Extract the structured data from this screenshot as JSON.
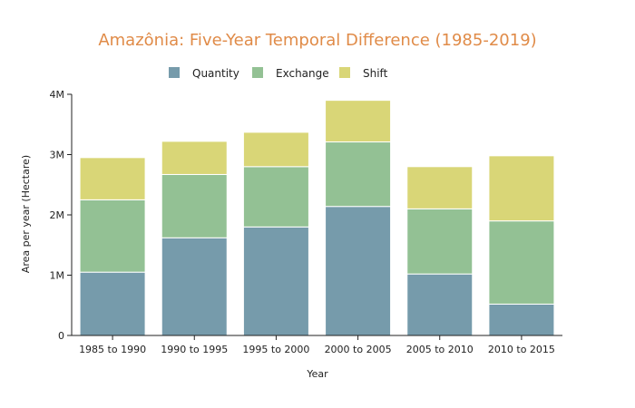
{
  "chart_data": {
    "type": "bar",
    "stacked": true,
    "title": "Amazônia: Five-Year Temporal Difference (1985-2019)",
    "xlabel": "Year",
    "ylabel": "Area per year (Hectare)",
    "categories": [
      "1985 to 1990",
      "1990 to 1995",
      "1995 to 2000",
      "2000 to 2005",
      "2005 to 2010",
      "2010 to 2015"
    ],
    "series": [
      {
        "name": "Quantity",
        "color": "#769bab",
        "values": [
          1050000,
          1620000,
          1800000,
          2140000,
          1020000,
          520000
        ]
      },
      {
        "name": "Exchange",
        "color": "#93c194",
        "values": [
          1200000,
          1050000,
          1000000,
          1070000,
          1080000,
          1380000
        ]
      },
      {
        "name": "Shift",
        "color": "#d9d677",
        "values": [
          700000,
          550000,
          570000,
          690000,
          700000,
          1080000
        ]
      }
    ],
    "ylim": [
      0,
      4000000
    ],
    "yticks": [
      {
        "value": 0,
        "label": "0"
      },
      {
        "value": 1000000,
        "label": "1M"
      },
      {
        "value": 2000000,
        "label": "2M"
      },
      {
        "value": 3000000,
        "label": "3M"
      },
      {
        "value": 4000000,
        "label": "4M"
      }
    ],
    "legend_position": "top",
    "grid": false
  },
  "colors": {
    "title": "#e08b48",
    "axis": "#222222"
  }
}
